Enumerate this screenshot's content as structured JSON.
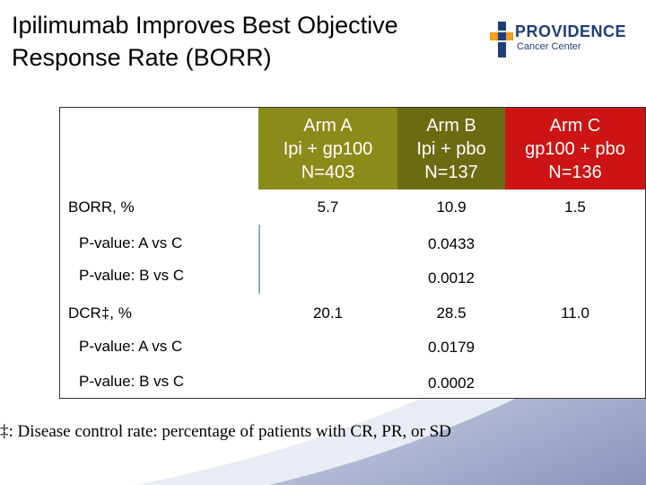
{
  "title": "Ipilimumab Improves Best Objective Response Rate (BORR)",
  "logo": {
    "name": "PROVIDENCE",
    "sub": "Cancer Center"
  },
  "colors": {
    "arm_a": "#8b8b1a",
    "arm_b": "#6b6b12",
    "arm_c": "#cc1414",
    "logo_orange": "#f39c1f",
    "logo_blue": "#1f3f7a"
  },
  "table": {
    "arms": [
      {
        "name": "Arm A",
        "treatment": "Ipi + gp100",
        "n": "N=403"
      },
      {
        "name": "Arm B",
        "treatment": "Ipi + pbo",
        "n": "N=137"
      },
      {
        "name": "Arm C",
        "treatment": "gp100 + pbo",
        "n": "N=136"
      }
    ],
    "borr": {
      "label": "BORR, %",
      "a": "5.7",
      "b": "10.9",
      "c": "1.5"
    },
    "borr_p_ac": {
      "label": "P-value: A vs C",
      "value": "0.0433"
    },
    "borr_p_bc": {
      "label": "P-value: B vs C",
      "value": "0.0012"
    },
    "dcr": {
      "label": "DCR‡, %",
      "a": "20.1",
      "b": "28.5",
      "c": "11.0"
    },
    "dcr_p_ac": {
      "label": "P-value: A vs C",
      "value": "0.0179"
    },
    "dcr_p_bc": {
      "label": "P-value: B vs C",
      "value": "0.0002"
    }
  },
  "footnote": "‡: Disease control rate: percentage of patients with CR, PR, or SD"
}
